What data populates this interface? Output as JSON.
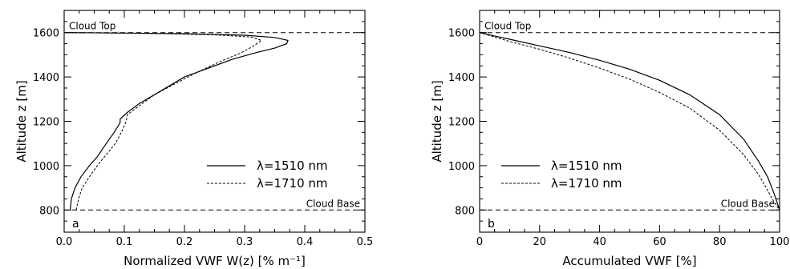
{
  "chart_data": [
    {
      "type": "line",
      "panel_label": "a",
      "xlabel": "Normalized VWF W(z)  [% m⁻¹]",
      "ylabel": "Altitude z [m]",
      "xlim": [
        0.0,
        0.5
      ],
      "ylim": [
        700,
        1700
      ],
      "xticks": [
        0.0,
        0.1,
        0.2,
        0.3,
        0.4,
        0.5
      ],
      "xtick_labels": [
        "0.0",
        "0.1",
        "0.2",
        "0.3",
        "0.4",
        "0.5"
      ],
      "yticks": [
        800,
        1000,
        1200,
        1400,
        1600
      ],
      "ytick_labels": [
        "800",
        "1000",
        "1200",
        "1400",
        "1600"
      ],
      "reference_lines": [
        {
          "y": 1600,
          "label": "Cloud Top"
        },
        {
          "y": 800,
          "label": "Cloud Base"
        }
      ],
      "legend_position": "right",
      "series": [
        {
          "name": "λ=1510 nm",
          "style": "solid",
          "points": [
            [
              0.01,
              800
            ],
            [
              0.012,
              850
            ],
            [
              0.018,
              900
            ],
            [
              0.028,
              950
            ],
            [
              0.042,
              1000
            ],
            [
              0.055,
              1040
            ],
            [
              0.07,
              1100
            ],
            [
              0.083,
              1150
            ],
            [
              0.09,
              1180
            ],
            [
              0.093,
              1195
            ],
            [
              0.093,
              1210
            ],
            [
              0.105,
              1240
            ],
            [
              0.125,
              1280
            ],
            [
              0.15,
              1320
            ],
            [
              0.175,
              1360
            ],
            [
              0.2,
              1400
            ],
            [
              0.24,
              1440
            ],
            [
              0.28,
              1480
            ],
            [
              0.32,
              1510
            ],
            [
              0.35,
              1530
            ],
            [
              0.37,
              1550
            ],
            [
              0.372,
              1565
            ],
            [
              0.35,
              1578
            ],
            [
              0.3,
              1588
            ],
            [
              0.2,
              1595
            ],
            [
              0.1,
              1598
            ],
            [
              0.0,
              1600
            ]
          ]
        },
        {
          "name": "λ=1710 nm",
          "style": "dashed",
          "points": [
            [
              0.02,
              800
            ],
            [
              0.024,
              850
            ],
            [
              0.03,
              900
            ],
            [
              0.042,
              950
            ],
            [
              0.055,
              1000
            ],
            [
              0.07,
              1050
            ],
            [
              0.085,
              1100
            ],
            [
              0.095,
              1150
            ],
            [
              0.1,
              1180
            ],
            [
              0.103,
              1200
            ],
            [
              0.105,
              1230
            ],
            [
              0.125,
              1270
            ],
            [
              0.15,
              1320
            ],
            [
              0.185,
              1370
            ],
            [
              0.22,
              1420
            ],
            [
              0.26,
              1470
            ],
            [
              0.295,
              1510
            ],
            [
              0.315,
              1540
            ],
            [
              0.328,
              1565
            ],
            [
              0.31,
              1580
            ],
            [
              0.25,
              1590
            ],
            [
              0.15,
              1596
            ],
            [
              0.05,
              1599
            ],
            [
              0.0,
              1600
            ]
          ]
        }
      ]
    },
    {
      "type": "line",
      "panel_label": "b",
      "xlabel": "Accumulated VWF [%]",
      "ylabel": "Altitude z [m]",
      "xlim": [
        0,
        100
      ],
      "ylim": [
        700,
        1700
      ],
      "xticks": [
        0,
        20,
        40,
        60,
        80,
        100
      ],
      "xtick_labels": [
        "0",
        "20",
        "40",
        "60",
        "80",
        "100"
      ],
      "yticks": [
        800,
        1000,
        1200,
        1400,
        1600
      ],
      "ytick_labels": [
        "800",
        "1000",
        "1200",
        "1400",
        "1600"
      ],
      "reference_lines": [
        {
          "y": 1600,
          "label": "Cloud Top"
        },
        {
          "y": 800,
          "label": "Cloud Base"
        }
      ],
      "legend_position": "left",
      "series": [
        {
          "name": "λ=1510 nm",
          "style": "solid",
          "points": [
            [
              0,
              1600
            ],
            [
              5,
              1585
            ],
            [
              10,
              1570
            ],
            [
              20,
              1540
            ],
            [
              30,
              1510
            ],
            [
              40,
              1475
            ],
            [
              50,
              1435
            ],
            [
              60,
              1385
            ],
            [
              70,
              1320
            ],
            [
              80,
              1230
            ],
            [
              88,
              1120
            ],
            [
              93,
              1020
            ],
            [
              96,
              950
            ],
            [
              98,
              880
            ],
            [
              99,
              840
            ],
            [
              100,
              800
            ]
          ]
        },
        {
          "name": "λ=1710 nm",
          "style": "dashed",
          "points": [
            [
              0,
              1600
            ],
            [
              5,
              1580
            ],
            [
              10,
              1560
            ],
            [
              20,
              1525
            ],
            [
              30,
              1485
            ],
            [
              40,
              1440
            ],
            [
              50,
              1390
            ],
            [
              60,
              1330
            ],
            [
              70,
              1260
            ],
            [
              80,
              1160
            ],
            [
              88,
              1050
            ],
            [
              93,
              960
            ],
            [
              96,
              890
            ],
            [
              98,
              840
            ],
            [
              100,
              800
            ]
          ]
        }
      ]
    }
  ]
}
